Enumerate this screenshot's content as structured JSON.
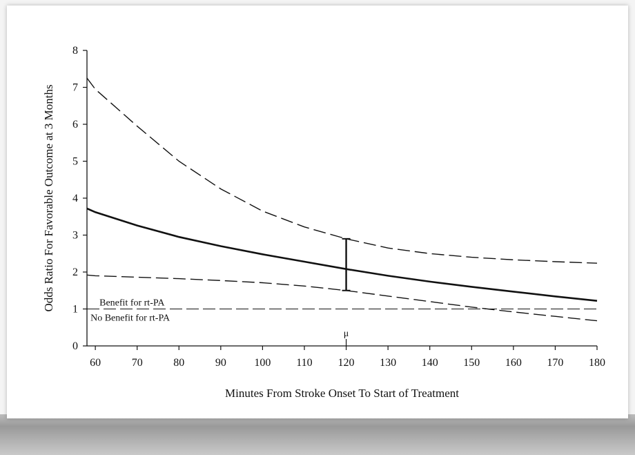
{
  "chart_data": {
    "type": "line",
    "title": "",
    "xlabel": "Minutes From Stroke Onset To Start of Treatment",
    "ylabel": "Odds Ratio For Favorable Outcome at 3 Months",
    "xlim": [
      58,
      180
    ],
    "ylim": [
      0,
      8
    ],
    "x_ticks": [
      60,
      70,
      80,
      90,
      100,
      110,
      120,
      130,
      140,
      150,
      160,
      170,
      180
    ],
    "y_ticks": [
      0,
      1,
      2,
      3,
      4,
      5,
      6,
      7,
      8
    ],
    "grid": false,
    "series": [
      {
        "style": "solid",
        "x": [
          58,
          60,
          70,
          80,
          90,
          100,
          110,
          120,
          130,
          140,
          150,
          160,
          170,
          180
        ],
        "y": [
          3.72,
          3.62,
          3.26,
          2.95,
          2.7,
          2.48,
          2.28,
          2.08,
          1.9,
          1.74,
          1.6,
          1.47,
          1.34,
          1.22
        ]
      },
      {
        "style": "dashed",
        "x": [
          58,
          60,
          70,
          80,
          90,
          100,
          110,
          120,
          130,
          140,
          150,
          160,
          170,
          180
        ],
        "y": [
          7.25,
          6.95,
          5.95,
          5.0,
          4.25,
          3.65,
          3.22,
          2.9,
          2.65,
          2.5,
          2.4,
          2.33,
          2.28,
          2.24
        ]
      },
      {
        "style": "dashed",
        "x": [
          58,
          60,
          70,
          80,
          90,
          100,
          110,
          120,
          130,
          140,
          150,
          160,
          170,
          180
        ],
        "y": [
          1.92,
          1.9,
          1.86,
          1.82,
          1.77,
          1.71,
          1.62,
          1.5,
          1.35,
          1.2,
          1.05,
          0.92,
          0.8,
          0.68
        ]
      },
      {
        "style": "dashed-reference",
        "x": [
          58,
          180
        ],
        "y": [
          1,
          1
        ]
      }
    ],
    "error_bar": {
      "x": 120,
      "low": 1.5,
      "high": 2.9
    },
    "annotations": {
      "benefit": "Benefit for rt-PA",
      "no_benefit": "No Benefit for rt-PA",
      "mu": "μ"
    }
  }
}
